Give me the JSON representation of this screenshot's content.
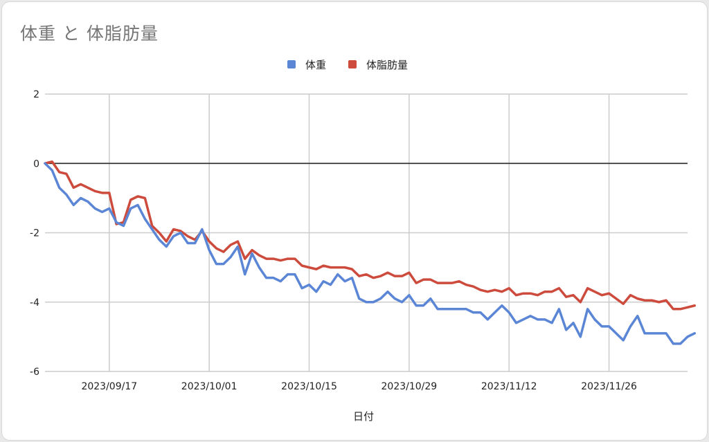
{
  "chart_data": {
    "type": "line",
    "title": "体重 と 体脂肪量",
    "xlabel": "日付",
    "ylabel": "",
    "ylim": [
      -6,
      2
    ],
    "yticks": [
      "2",
      "0",
      "-2",
      "-4",
      "-6"
    ],
    "xticks": [
      {
        "label": "2023/09/17",
        "day": 9
      },
      {
        "label": "2023/10/01",
        "day": 23
      },
      {
        "label": "2023/10/15",
        "day": 37
      },
      {
        "label": "2023/10/29",
        "day": 51
      },
      {
        "label": "2023/11/12",
        "day": 65
      },
      {
        "label": "2023/11/26",
        "day": 79
      }
    ],
    "xrange": [
      0,
      90
    ],
    "grid": true,
    "zero_line": true,
    "legend_position": "top",
    "series": [
      {
        "name": "体重",
        "color": "#5b86d6",
        "values": [
          0,
          -0.2,
          -0.7,
          -0.9,
          -1.2,
          -1.0,
          -1.1,
          -1.3,
          -1.4,
          -1.3,
          -1.7,
          -1.8,
          -1.3,
          -1.2,
          -1.6,
          -1.9,
          -2.2,
          -2.4,
          -2.1,
          -2.0,
          -2.3,
          -2.3,
          -1.9,
          -2.5,
          -2.9,
          -2.9,
          -2.7,
          -2.4,
          -3.2,
          -2.6,
          -3.0,
          -3.3,
          -3.3,
          -3.4,
          -3.2,
          -3.2,
          -3.6,
          -3.5,
          -3.7,
          -3.4,
          -3.5,
          -3.2,
          -3.4,
          -3.3,
          -3.9,
          -4.0,
          -4.0,
          -3.9,
          -3.7,
          -3.9,
          -4.0,
          -3.8,
          -4.1,
          -4.1,
          -3.9,
          -4.2,
          -4.2,
          -4.2,
          -4.2,
          -4.2,
          -4.3,
          -4.3,
          -4.5,
          -4.3,
          -4.1,
          -4.3,
          -4.6,
          -4.5,
          -4.4,
          -4.5,
          -4.5,
          -4.6,
          -4.2,
          -4.8,
          -4.6,
          -5.0,
          -4.2,
          -4.5,
          -4.7,
          -4.7,
          -4.9,
          -5.1,
          -4.7,
          -4.4,
          -4.9,
          -4.9,
          -4.9,
          -4.9,
          -5.2,
          -5.2,
          -5.0,
          -4.9
        ]
      },
      {
        "name": "体脂肪量",
        "color": "#cc4b3c",
        "values": [
          0,
          0.05,
          -0.25,
          -0.3,
          -0.7,
          -0.6,
          -0.7,
          -0.8,
          -0.85,
          -0.85,
          -1.75,
          -1.7,
          -1.05,
          -0.95,
          -1.0,
          -1.8,
          -2.0,
          -2.25,
          -1.9,
          -1.95,
          -2.1,
          -2.2,
          -1.95,
          -2.25,
          -2.45,
          -2.55,
          -2.35,
          -2.25,
          -2.75,
          -2.5,
          -2.65,
          -2.75,
          -2.75,
          -2.8,
          -2.75,
          -2.75,
          -2.95,
          -3.0,
          -3.05,
          -2.95,
          -3.0,
          -3.0,
          -3.0,
          -3.05,
          -3.25,
          -3.2,
          -3.3,
          -3.25,
          -3.15,
          -3.25,
          -3.25,
          -3.15,
          -3.45,
          -3.35,
          -3.35,
          -3.45,
          -3.45,
          -3.45,
          -3.4,
          -3.5,
          -3.55,
          -3.65,
          -3.7,
          -3.65,
          -3.7,
          -3.6,
          -3.8,
          -3.75,
          -3.75,
          -3.8,
          -3.7,
          -3.7,
          -3.6,
          -3.85,
          -3.8,
          -4.0,
          -3.6,
          -3.7,
          -3.8,
          -3.75,
          -3.9,
          -4.05,
          -3.8,
          -3.9,
          -3.95,
          -3.95,
          -4.0,
          -3.95,
          -4.2,
          -4.2,
          -4.15,
          -4.1
        ]
      }
    ]
  }
}
